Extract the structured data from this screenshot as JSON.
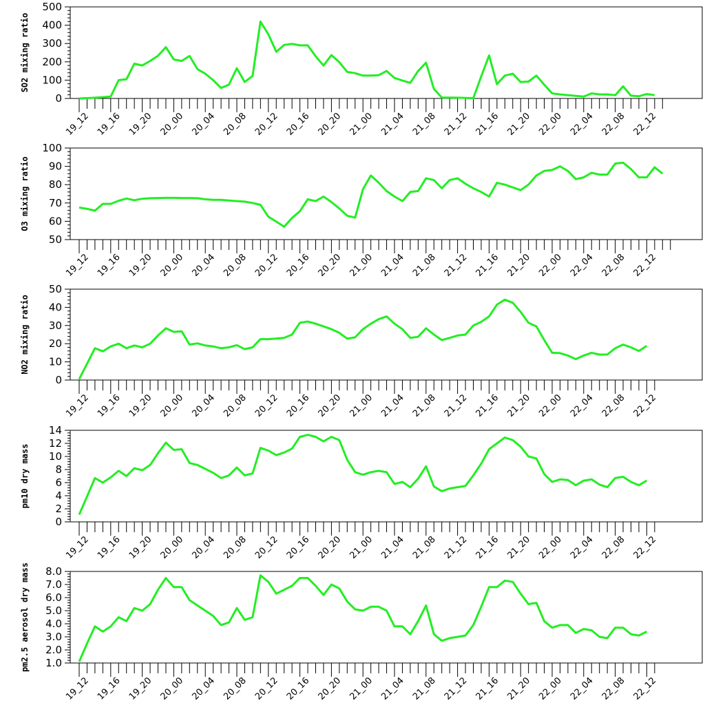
{
  "figure": {
    "series_color": "#22ee22"
  },
  "chart_data": [
    {
      "type": "line",
      "ylabel": "SO2 mixing ratio",
      "ylim": [
        0,
        500
      ],
      "yticks": [
        "0",
        "100",
        "200",
        "300",
        "400",
        "500"
      ],
      "xtick_labels": [
        "19_12",
        "19_16",
        "19_20",
        "20_00",
        "20_04",
        "20_08",
        "20_12",
        "20_16",
        "20_20",
        "21_00",
        "21_04",
        "21_08",
        "21_12",
        "21_16",
        "21_20",
        "22_00",
        "22_04",
        "22_08",
        "22_12"
      ],
      "x_start_hour": 12,
      "values": [
        0,
        2,
        4,
        7,
        10,
        100,
        105,
        190,
        180,
        205,
        233,
        280,
        213,
        205,
        232,
        160,
        135,
        100,
        57,
        75,
        165,
        90,
        123,
        420,
        350,
        255,
        292,
        298,
        290,
        290,
        230,
        180,
        237,
        198,
        145,
        138,
        125,
        125,
        127,
        150,
        112,
        98,
        85,
        150,
        195,
        52,
        5,
        5,
        4,
        3,
        2,
        120,
        235,
        78,
        125,
        135,
        90,
        92,
        125,
        75,
        28,
        22,
        18,
        14,
        10,
        28,
        22,
        22,
        18,
        66,
        15,
        12,
        24,
        18
      ]
    },
    {
      "type": "line",
      "ylabel": "O3 mixing ratio",
      "ylim": [
        50,
        100
      ],
      "yticks": [
        "50",
        "60",
        "70",
        "80",
        "90",
        "100"
      ],
      "xtick_labels": [
        "19_12",
        "19_16",
        "19_20",
        "20_00",
        "20_04",
        "20_08",
        "20_12",
        "20_16",
        "20_20",
        "21_00",
        "21_04",
        "21_08",
        "21_12",
        "21_16",
        "21_20",
        "22_00",
        "22_04",
        "22_08",
        "22_12"
      ],
      "x_start_hour": 12,
      "values": [
        67.5,
        66.8,
        65.8,
        69.5,
        69.5,
        71.2,
        72.4,
        71.5,
        72.3,
        72.6,
        72.7,
        72.8,
        72.8,
        72.7,
        72.7,
        72.6,
        72.0,
        71.7,
        71.7,
        71.3,
        71.0,
        70.7,
        70.0,
        69.0,
        62.5,
        59.8,
        57.0,
        61.8,
        65.5,
        72.0,
        71.0,
        73.5,
        70.5,
        67.0,
        63.0,
        62.0,
        77.5,
        85.0,
        81.0,
        76.5,
        73.5,
        71.0,
        76.0,
        76.5,
        83.5,
        82.5,
        78.0,
        82.5,
        83.5,
        80.5,
        78.0,
        76.0,
        73.5,
        81.0,
        80.0,
        78.5,
        77.0,
        80.0,
        85.0,
        87.5,
        88.0,
        90.0,
        87.5,
        83.0,
        84.0,
        86.5,
        85.5,
        85.5,
        91.5,
        92.0,
        88.5,
        84.0,
        84.0,
        89.5,
        86.0
      ]
    },
    {
      "type": "line",
      "ylabel": "NO2 mixing ratio",
      "ylim": [
        0,
        50
      ],
      "yticks": [
        "0",
        "10",
        "20",
        "30",
        "40",
        "50"
      ],
      "xtick_labels": [
        "19_12",
        "19_16",
        "19_20",
        "20_00",
        "20_04",
        "20_08",
        "20_12",
        "20_16",
        "20_20",
        "21_00",
        "21_04",
        "21_08",
        "21_12",
        "21_16",
        "21_20",
        "22_00",
        "22_04",
        "22_08",
        "22_12"
      ],
      "x_start_hour": 12,
      "values": [
        0.5,
        9,
        17.5,
        15.8,
        18.5,
        20,
        17.5,
        19,
        18,
        20,
        24.5,
        28.5,
        26.5,
        26.8,
        19.5,
        20.2,
        19,
        18.5,
        17.5,
        18,
        19.2,
        17,
        18,
        22.5,
        22.5,
        22.8,
        23.2,
        25,
        31.5,
        32.2,
        31,
        29.5,
        28,
        26,
        22.8,
        23.5,
        28,
        31,
        33.5,
        35,
        31,
        28,
        23.2,
        23.8,
        28.5,
        25,
        22,
        23.2,
        24.5,
        25,
        30,
        32,
        35,
        41.5,
        44.2,
        42.5,
        37.5,
        31.5,
        29.5,
        22,
        15,
        14.8,
        13.5,
        11.5,
        13.5,
        15,
        14,
        14,
        17.5,
        19.5,
        18,
        16,
        18.8
      ]
    },
    {
      "type": "line",
      "ylabel": "pm10 dry mass",
      "ylim": [
        0,
        14
      ],
      "yticks": [
        "0",
        "2",
        "4",
        "6",
        "8",
        "10",
        "12",
        "14"
      ],
      "xtick_labels": [
        "19_12",
        "19_16",
        "19_20",
        "20_00",
        "20_04",
        "20_08",
        "20_12",
        "20_16",
        "20_20",
        "21_00",
        "21_04",
        "21_08",
        "21_12",
        "21_16",
        "21_20",
        "22_00",
        "22_04",
        "22_08",
        "22_12"
      ],
      "x_start_hour": 12,
      "values": [
        1.1,
        3.9,
        6.7,
        6.0,
        6.8,
        7.8,
        7.0,
        8.2,
        7.9,
        8.7,
        10.5,
        12.1,
        11.0,
        11.1,
        9.0,
        8.7,
        8.1,
        7.5,
        6.7,
        7.1,
        8.3,
        7.1,
        7.4,
        11.3,
        10.9,
        10.2,
        10.6,
        11.2,
        13.0,
        13.3,
        13.0,
        12.3,
        13.0,
        12.5,
        9.5,
        7.6,
        7.2,
        7.6,
        7.8,
        7.6,
        5.8,
        6.1,
        5.3,
        6.6,
        8.5,
        5.4,
        4.7,
        5.1,
        5.3,
        5.5,
        7.1,
        8.9,
        11.1,
        12.0,
        12.9,
        12.5,
        11.5,
        10.0,
        9.7,
        7.3,
        6.1,
        6.5,
        6.4,
        5.6,
        6.3,
        6.5,
        5.7,
        5.3,
        6.7,
        6.9,
        6.1,
        5.6,
        6.3
      ]
    },
    {
      "type": "line",
      "ylabel": "pm2.5 aerosol dry mass",
      "ylim": [
        1.0,
        8.0
      ],
      "yticks": [
        "1.0",
        "2.0",
        "3.0",
        "4.0",
        "5.0",
        "6.0",
        "7.0",
        "8.0"
      ],
      "xtick_labels": [
        "19_12",
        "19_16",
        "19_20",
        "20_00",
        "20_04",
        "20_08",
        "20_12",
        "20_16",
        "20_20",
        "21_00",
        "21_04",
        "21_08",
        "21_12",
        "21_16",
        "21_20",
        "22_00",
        "22_04",
        "22_08",
        "22_12"
      ],
      "x_start_hour": 12,
      "values": [
        1.1,
        2.5,
        3.8,
        3.4,
        3.8,
        4.5,
        4.2,
        5.2,
        5.0,
        5.5,
        6.6,
        7.5,
        6.8,
        6.8,
        5.8,
        5.4,
        5.0,
        4.6,
        3.9,
        4.1,
        5.2,
        4.3,
        4.5,
        7.7,
        7.2,
        6.3,
        6.6,
        6.9,
        7.5,
        7.5,
        6.9,
        6.2,
        7.0,
        6.7,
        5.7,
        5.1,
        5.0,
        5.3,
        5.3,
        5.0,
        3.8,
        3.8,
        3.2,
        4.2,
        5.4,
        3.2,
        2.7,
        2.9,
        3.0,
        3.1,
        3.9,
        5.3,
        6.8,
        6.8,
        7.3,
        7.2,
        6.3,
        5.5,
        5.6,
        4.2,
        3.7,
        3.9,
        3.9,
        3.3,
        3.6,
        3.5,
        3.0,
        2.9,
        3.7,
        3.7,
        3.2,
        3.1,
        3.4
      ]
    }
  ]
}
